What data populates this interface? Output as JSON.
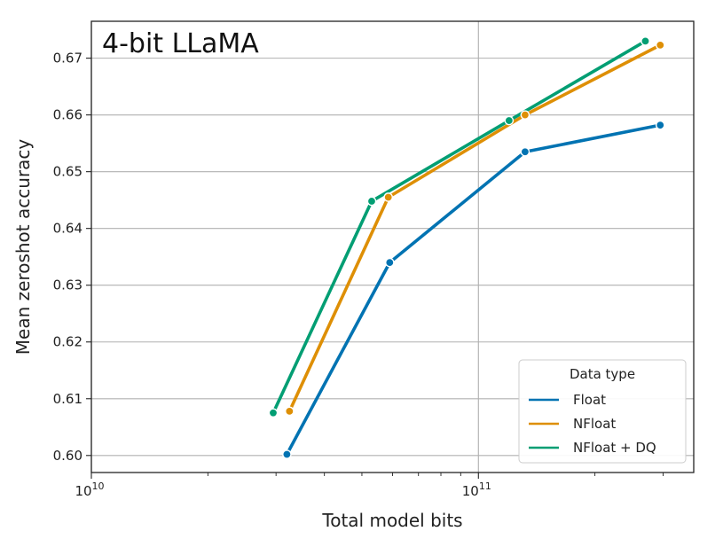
{
  "chart_data": {
    "type": "line",
    "title": "4-bit LLaMA",
    "xlabel": "Total model bits",
    "ylabel": "Mean zeroshot accuracy",
    "x_scale": "log",
    "xlim": [
      10000000000.0,
      360000000000.0
    ],
    "ylim": [
      0.597,
      0.6765
    ],
    "x_ticks": [
      {
        "value": 10000000000.0,
        "base": "10",
        "exp": "10"
      },
      {
        "value": 100000000000.0,
        "base": "10",
        "exp": "11"
      }
    ],
    "y_ticks": [
      0.6,
      0.61,
      0.62,
      0.63,
      0.64,
      0.65,
      0.66,
      0.67
    ],
    "y_tick_labels": [
      "0.60",
      "0.61",
      "0.62",
      "0.63",
      "0.64",
      "0.65",
      "0.66",
      "0.67"
    ],
    "grid": true,
    "legend": {
      "title": "Data type",
      "placement": "lower-right"
    },
    "series": [
      {
        "name": "Float",
        "color": "#0173b2",
        "x": [
          32000000000.0,
          59000000000.0,
          132000000000.0,
          295000000000.0
        ],
        "y": [
          0.6002,
          0.634,
          0.6535,
          0.6582
        ]
      },
      {
        "name": "NFloat",
        "color": "#de8f05",
        "x": [
          32500000000.0,
          58500000000.0,
          132000000000.0,
          295000000000.0
        ],
        "y": [
          0.6078,
          0.6455,
          0.66,
          0.6723
        ]
      },
      {
        "name": "NFloat + DQ",
        "color": "#029e73",
        "x": [
          29500000000.0,
          53000000000.0,
          120000000000.0,
          270000000000.0
        ],
        "y": [
          0.6075,
          0.6448,
          0.659,
          0.673
        ]
      }
    ]
  }
}
